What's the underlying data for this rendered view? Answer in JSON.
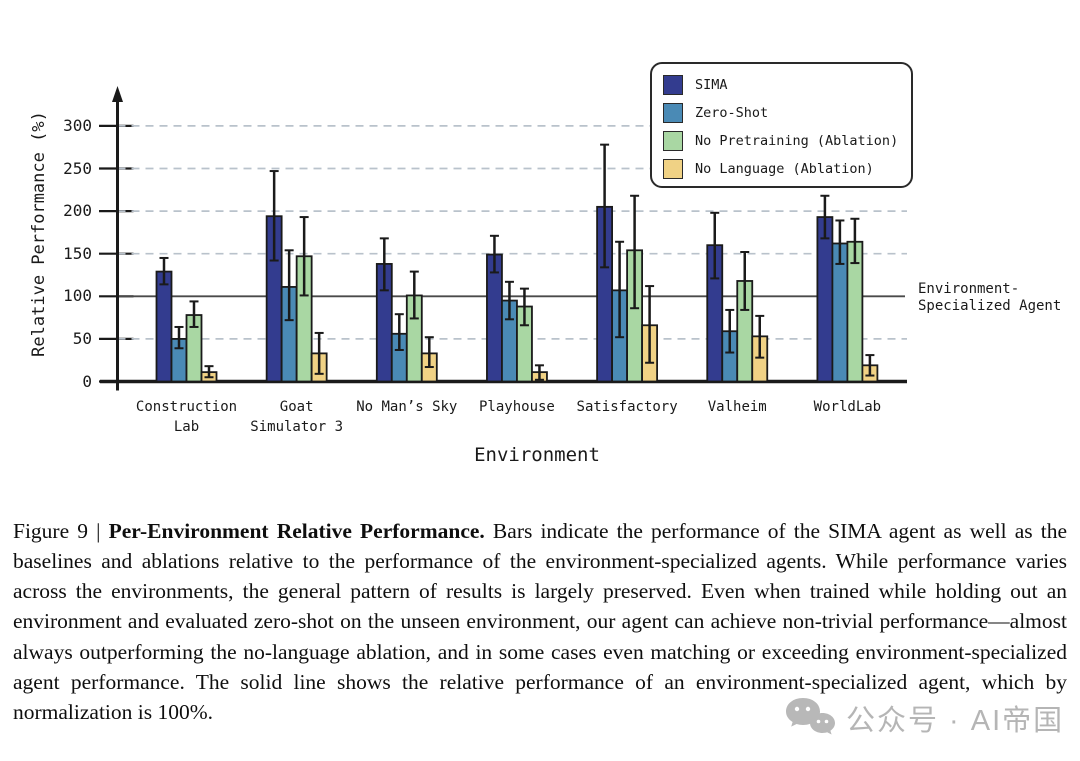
{
  "chart_data": {
    "type": "bar",
    "title": "",
    "xlabel": "Environment",
    "ylabel": "Relative Performance (%)",
    "ylim": [
      0,
      330
    ],
    "yticks": [
      0,
      50,
      100,
      150,
      200,
      250,
      300
    ],
    "grid": "horizontal dashed at 50/150/200/250/300, solid reference at 100",
    "legend_position": "top-right inside plot",
    "reference_line": {
      "value": 100,
      "label_lines": [
        "Environment-",
        "Specialized Agent"
      ]
    },
    "categories": [
      "Construction Lab",
      "Goat Simulator 3",
      "No Man's Sky",
      "Playhouse",
      "Satisfactory",
      "Valheim",
      "WorldLab"
    ],
    "category_label_lines": [
      [
        "Construction",
        "Lab"
      ],
      [
        "Goat",
        "Simulator 3"
      ],
      [
        "No Man’s Sky"
      ],
      [
        "Playhouse"
      ],
      [
        "Satisfactory"
      ],
      [
        "Valheim"
      ],
      [
        "WorldLab"
      ]
    ],
    "series": [
      {
        "name": "SIMA",
        "color": "#333c8f",
        "values": [
          129,
          194,
          138,
          149,
          205,
          160,
          193
        ],
        "err_lo": [
          114,
          142,
          107,
          128,
          134,
          121,
          168
        ],
        "err_hi": [
          145,
          247,
          168,
          171,
          278,
          198,
          218
        ]
      },
      {
        "name": "Zero-Shot",
        "color": "#4a8ab5",
        "values": [
          50,
          111,
          56,
          95,
          107,
          59,
          162
        ],
        "err_lo": [
          39,
          72,
          37,
          73,
          52,
          34,
          138
        ],
        "err_hi": [
          64,
          154,
          79,
          117,
          164,
          84,
          189
        ]
      },
      {
        "name": "No Pretraining (Ablation)",
        "color": "#a9d7a3",
        "values": [
          78,
          147,
          101,
          88,
          154,
          118,
          164
        ],
        "err_lo": [
          64,
          101,
          74,
          66,
          86,
          84,
          139
        ],
        "err_hi": [
          94,
          193,
          129,
          109,
          218,
          152,
          191
        ]
      },
      {
        "name": "No Language (Ablation)",
        "color": "#f0d285",
        "values": [
          11,
          33,
          33,
          11,
          66,
          53,
          19
        ],
        "err_lo": [
          5,
          9,
          17,
          2,
          22,
          28,
          7
        ],
        "err_hi": [
          18,
          57,
          52,
          19,
          112,
          77,
          31
        ]
      }
    ],
    "colors": {
      "axis": "#1a1a1a",
      "bar_border": "#1a1a1a",
      "grid_dashed": "#b9c2cb",
      "reference_line": "#4a4a4a",
      "error_bar": "#1a1a1a"
    }
  },
  "caption": {
    "prefix": "Figure 9 | ",
    "title": "Per-Environment Relative Performance.",
    "body": " Bars indicate the performance of the SIMA agent as well as the baselines and ablations relative to the performance of the environment-specialized agents. While performance varies across the environments, the general pattern of results is largely preserved. Even when trained while holding out an environment and evaluated zero-shot on the unseen environment, our agent can achieve non-trivial performance—almost always outperforming the no-language ablation, and in some cases even matching or exceeding environment-specialized agent performance. The solid line shows the relative performance of an environment-specialized agent, which by normalization is 100%."
  },
  "watermark": {
    "icon": "wechat-icon",
    "text": "公众号 · AI帝国",
    "color": "#aeaeae"
  }
}
